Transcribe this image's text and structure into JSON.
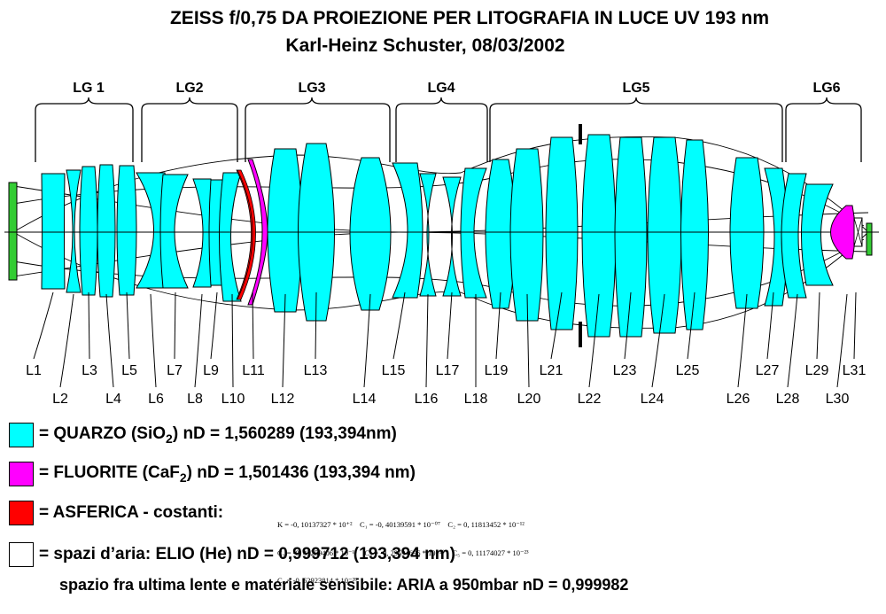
{
  "title_line1": "ZEISS f/0,75 DA PROIEZIONE PER LITOGRAFIA IN LUCE UV 193 nm",
  "title_line2": "Karl-Heinz Schuster, 08/03/2002",
  "groups": [
    "LG 1",
    "LG2",
    "LG3",
    "LG4",
    "LG5",
    "LG6"
  ],
  "lenses_top_row": [
    "L1",
    "L3",
    "L5",
    "L7",
    "L9",
    "L11",
    "L13",
    "L15",
    "L17",
    "L19",
    "L21",
    "L23",
    "L25",
    "L27",
    "L29",
    "L31"
  ],
  "lenses_bottom_row": [
    "L2",
    "L4",
    "L6",
    "L8",
    "L10",
    "L12",
    "L14",
    "L16",
    "L18",
    "L20",
    "L22",
    "L24",
    "L26",
    "L28",
    "L30"
  ],
  "colors": {
    "quartz": "#00ffff",
    "fluorite": "#ff00ff",
    "aspheric": "#ff0000",
    "air": "#ffffff",
    "object": "#33cc33"
  },
  "legend": {
    "quartz": {
      "pre": "= QUARZO (SiO",
      "sub": "2",
      "post": ")  nD = 1,560289 (193,394nm)"
    },
    "fluorite": {
      "pre": "= FLUORITE (CaF",
      "sub": "2",
      "post": ")  nD = 1,501436 (193,394 nm)"
    },
    "aspheric": {
      "label": "= ASFERICA - costanti:"
    },
    "air": {
      "label": "= spazi d’aria: ELIO (He)  nD = 0,999712 (193,394 nm)",
      "line2": "spazio fra ultima lente e materiale sensibile: ARIA a 950mbar  nD = 0,999982"
    }
  },
  "aspheric_constants": [
    "K = -0, 10137327 * 10⁺²    C₁ = -0, 40139591 * 10⁻⁰⁷    C₂ = 0, 11813452 * 10⁻¹²",
    "C₃ = -0, 45259406 * 10⁻¹⁶    C₄ = -0, 29594696 * 10⁻²⁰    C₅ = 0, 11174027 * 10⁻²³",
    "C₆ = -0, 62923814 * 10⁻²⁸"
  ]
}
